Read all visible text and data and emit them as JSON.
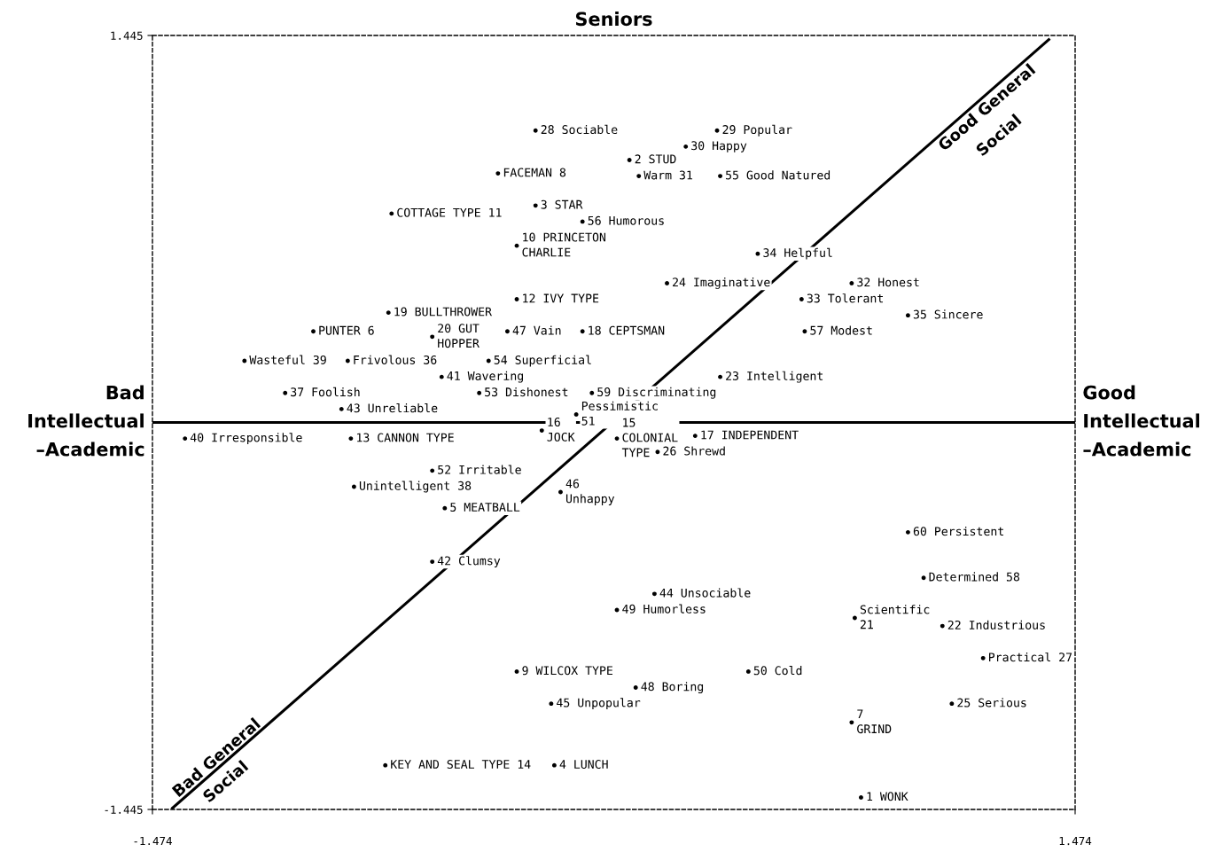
{
  "chart_data": {
    "type": "scatter",
    "title": "Seniors",
    "xlim": [
      -1.474,
      1.474
    ],
    "ylim": [
      -1.445,
      1.445
    ],
    "xticks": [
      -1.474,
      1.474
    ],
    "yticks": [
      -1.445,
      1.445
    ],
    "grid": false,
    "ref_lines": [
      {
        "axis": "y",
        "value": 0,
        "color": "#000000"
      }
    ],
    "annotations": [
      "Bad\nIntellectual\n–Academic",
      "Good\nIntellectual\n–Academic",
      "Good General",
      "Social",
      "Bad General",
      "Social",
      {
        "text": "28 Sociable",
        "x": -0.25,
        "y": 1.09
      },
      {
        "text": "29 Popular",
        "x": 0.33,
        "y": 1.09
      },
      {
        "text": "30 Happy",
        "x": 0.23,
        "y": 1.03
      },
      {
        "text": "2 STUD",
        "x": 0.05,
        "y": 0.98
      },
      {
        "text": "FACEMAN 8",
        "x": -0.37,
        "y": 0.93
      },
      {
        "text": "Warm 31",
        "x": 0.08,
        "y": 0.92
      },
      {
        "text": "55 Good Natured",
        "x": 0.34,
        "y": 0.92
      },
      {
        "text": "COTTAGE TYPE 11",
        "x": -0.71,
        "y": 0.78
      },
      {
        "text": "3 STAR",
        "x": -0.25,
        "y": 0.81
      },
      {
        "text": "56 Humorous",
        "x": -0.1,
        "y": 0.75
      },
      {
        "text": "10 PRINCETON\nCHARLIE",
        "x": -0.31,
        "y": 0.66
      },
      {
        "text": "34 Helpful",
        "x": 0.46,
        "y": 0.63
      },
      {
        "text": "24 Imaginative",
        "x": 0.17,
        "y": 0.52
      },
      {
        "text": "32 Honest",
        "x": 0.76,
        "y": 0.52
      },
      {
        "text": "33 Tolerant",
        "x": 0.6,
        "y": 0.46
      },
      {
        "text": "12 IVY TYPE",
        "x": -0.31,
        "y": 0.46
      },
      {
        "text": "35 Sincere",
        "x": 0.94,
        "y": 0.4
      },
      {
        "text": "19 BULLTHROWER",
        "x": -0.72,
        "y": 0.41
      },
      {
        "text": "PUNTER 6",
        "x": -0.96,
        "y": 0.34
      },
      {
        "text": "20 GUT\nHOPPER",
        "x": -0.58,
        "y": 0.32
      },
      {
        "text": "47 Vain",
        "x": -0.34,
        "y": 0.34
      },
      {
        "text": "18 CEPTSMAN",
        "x": -0.1,
        "y": 0.34
      },
      {
        "text": "57 Modest",
        "x": 0.61,
        "y": 0.34
      },
      {
        "text": "Wasteful 39",
        "x": -1.18,
        "y": 0.23
      },
      {
        "text": "Frivolous 36",
        "x": -0.85,
        "y": 0.23
      },
      {
        "text": "54 Superficial",
        "x": -0.4,
        "y": 0.23
      },
      {
        "text": "41 Wavering",
        "x": -0.55,
        "y": 0.17
      },
      {
        "text": "23 Intelligent",
        "x": 0.34,
        "y": 0.17
      },
      {
        "text": "37 Foolish",
        "x": -1.05,
        "y": 0.11
      },
      {
        "text": "53 Dishonest",
        "x": -0.43,
        "y": 0.11
      },
      {
        "text": "59 Discriminating",
        "x": -0.07,
        "y": 0.11
      },
      {
        "text": "43 Unreliable",
        "x": -0.87,
        "y": 0.05
      },
      {
        "text": "Pessimistic\n51",
        "x": -0.12,
        "y": 0.03
      },
      {
        "text": "16\nJOCK",
        "x": -0.23,
        "y": -0.03
      },
      {
        "text": "15\nCOLONIAL\nTYPE",
        "x": 0.01,
        "y": -0.06
      },
      {
        "text": "40 Irresponsible",
        "x": -1.37,
        "y": -0.06
      },
      {
        "text": "13 CANNON TYPE",
        "x": -0.84,
        "y": -0.06
      },
      {
        "text": "17 INDEPENDENT",
        "x": 0.26,
        "y": -0.05
      },
      {
        "text": "26 Shrewd",
        "x": 0.14,
        "y": -0.11
      },
      {
        "text": "52 Irritable",
        "x": -0.58,
        "y": -0.18
      },
      {
        "text": "Unintelligent 38",
        "x": -0.83,
        "y": -0.24
      },
      {
        "text": "46\nUnhappy",
        "x": -0.17,
        "y": -0.26
      },
      {
        "text": "5 MEATBALL",
        "x": -0.54,
        "y": -0.32
      },
      {
        "text": "60 Persistent",
        "x": 0.94,
        "y": -0.41
      },
      {
        "text": "42 Clumsy",
        "x": -0.58,
        "y": -0.52
      },
      {
        "text": "Determined 58",
        "x": 0.99,
        "y": -0.58
      },
      {
        "text": "44 Unsociable",
        "x": 0.13,
        "y": -0.64
      },
      {
        "text": "49 Humorless",
        "x": 0.01,
        "y": -0.7
      },
      {
        "text": "Scientific\n21",
        "x": 0.77,
        "y": -0.73
      },
      {
        "text": "22 Industrious",
        "x": 1.05,
        "y": -0.76
      },
      {
        "text": "Practical 27",
        "x": 1.18,
        "y": -0.88
      },
      {
        "text": "9 WILCOX TYPE",
        "x": -0.31,
        "y": -0.93
      },
      {
        "text": "50 Cold",
        "x": 0.43,
        "y": -0.93
      },
      {
        "text": "48 Boring",
        "x": 0.07,
        "y": -0.99
      },
      {
        "text": "45 Unpopular",
        "x": -0.2,
        "y": -1.05
      },
      {
        "text": "25 Serious",
        "x": 1.08,
        "y": -1.05
      },
      {
        "text": "7\nGRIND",
        "x": 0.76,
        "y": -1.12
      },
      {
        "text": "KEY AND SEAL TYPE 14",
        "x": -0.73,
        "y": -1.28
      },
      {
        "text": "4 LUNCH",
        "x": -0.19,
        "y": -1.28
      },
      {
        "text": "1 WONK",
        "x": 0.79,
        "y": -1.4
      }
    ],
    "series": [
      {
        "color": "#000000",
        "marker": "circle",
        "x": [
          -0.25,
          0.33,
          0.23,
          0.05,
          -0.37,
          0.08,
          0.34,
          -0.71,
          -0.25,
          -0.1,
          -0.31,
          0.46,
          0.17,
          0.76,
          0.6,
          -0.31,
          0.94,
          -0.72,
          -0.96,
          -0.58,
          -0.34,
          -0.1,
          0.61,
          -1.18,
          -0.85,
          -0.4,
          -0.55,
          0.34,
          -1.05,
          -0.43,
          -0.07,
          -0.87,
          -0.12,
          -0.23,
          0.01,
          -1.37,
          -0.84,
          0.26,
          0.14,
          -0.58,
          -0.83,
          -0.17,
          -0.54,
          0.94,
          -0.58,
          0.99,
          0.13,
          0.01,
          0.77,
          1.05,
          1.18,
          -0.31,
          0.43,
          0.07,
          -0.2,
          1.08,
          0.76,
          -0.73,
          -0.19,
          0.79
        ],
        "values": [
          1.09,
          1.09,
          1.03,
          0.98,
          0.93,
          0.92,
          0.92,
          0.78,
          0.81,
          0.75,
          0.66,
          0.63,
          0.52,
          0.52,
          0.46,
          0.46,
          0.4,
          0.41,
          0.34,
          0.32,
          0.34,
          0.34,
          0.34,
          0.23,
          0.23,
          0.23,
          0.17,
          0.17,
          0.11,
          0.11,
          0.11,
          0.05,
          0.03,
          -0.03,
          -0.06,
          -0.06,
          -0.06,
          -0.05,
          -0.11,
          -0.18,
          -0.24,
          -0.26,
          -0.32,
          -0.41,
          -0.52,
          -0.58,
          -0.64,
          -0.7,
          -0.73,
          -0.76,
          -0.88,
          -0.93,
          -0.93,
          -0.99,
          -1.05,
          -1.05,
          -1.12,
          -1.28,
          -1.28,
          -1.4
        ]
      },
      {
        "type": "line",
        "color": "#000000",
        "x": [
          -1.41,
          1.39
        ],
        "values": [
          -1.44,
          1.43
        ]
      }
    ]
  }
}
